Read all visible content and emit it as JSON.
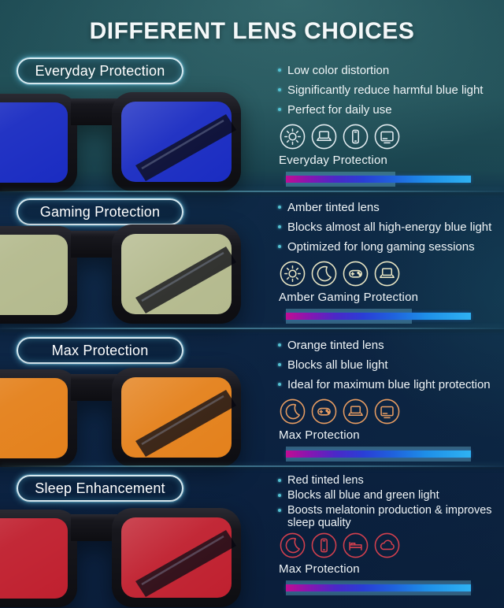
{
  "title": "DIFFERENT LENS CHOICES",
  "palette": {
    "background_top": "#215158",
    "background_bottom": "#0b203c",
    "pill_border_glow": "#7fd8ef",
    "bullet_dot": "#54c2d4",
    "bar_track": "rgba(108,180,208,0.42)",
    "bar_gradient": [
      "#c00d93",
      "#4b28c8",
      "#2a3ed6",
      "#1e8fe8",
      "#2fb2f2"
    ]
  },
  "sections": [
    {
      "id": "everyday",
      "pill_label": "Everyday Protection",
      "lens_color": "#1a2cc2",
      "bullets": [
        "Low color distortion",
        "Significantly reduce harmful blue light",
        "Perfect for daily use"
      ],
      "icons": [
        "sun",
        "laptop",
        "phone",
        "tv"
      ],
      "icon_color": "#e3ecf0",
      "icons_label": "Everyday Protection",
      "level_pct": 59
    },
    {
      "id": "gaming",
      "pill_label": "Gaming Protection",
      "lens_color": "#b4ba8e",
      "bullets": [
        "Amber tinted lens",
        "Blocks almost all high-energy blue light",
        "Optimized for long gaming sessions"
      ],
      "icons": [
        "sun",
        "moon",
        "gamepad",
        "laptop"
      ],
      "icon_color": "#e9e6c4",
      "icons_label": "Amber Gaming Protection",
      "level_pct": 68
    },
    {
      "id": "max",
      "pill_label": "Max Protection",
      "lens_color": "#e4811c",
      "bullets": [
        "Orange tinted lens",
        "Blocks all blue light",
        "Ideal for maximum blue light protection"
      ],
      "icons": [
        "moon",
        "gamepad",
        "laptop",
        "tv"
      ],
      "icon_color": "#e89d62",
      "icons_label": "Max Protection",
      "level_pct": 100
    },
    {
      "id": "sleep",
      "pill_label": "Sleep Enhancement",
      "lens_color": "#c0202f",
      "bullets": [
        "Red tinted lens",
        "Blocks all blue and green light",
        "Boosts melatonin production & improves sleep quality"
      ],
      "icons": [
        "moon",
        "phone",
        "bed",
        "cloud"
      ],
      "icon_color": "#d4404e",
      "icons_label": "Max Protection",
      "level_pct": 100
    }
  ]
}
